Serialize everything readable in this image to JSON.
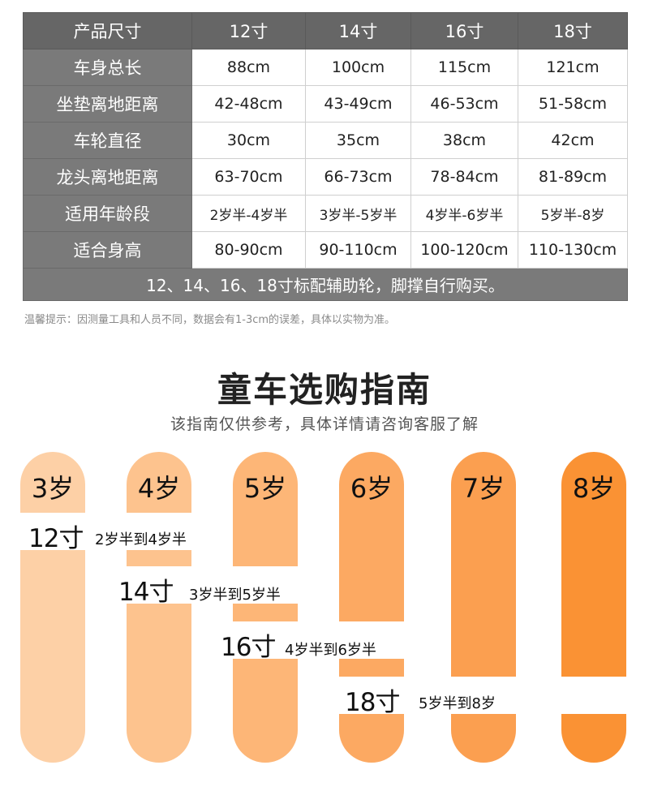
{
  "table": {
    "header": [
      "产品尺寸",
      "12寸",
      "14寸",
      "16寸",
      "18寸"
    ],
    "rows": [
      {
        "label": "车身总长",
        "values": [
          "88cm",
          "100cm",
          "115cm",
          "121cm"
        ]
      },
      {
        "label": "坐垫离地距离",
        "values": [
          "42-48cm",
          "43-49cm",
          "46-53cm",
          "51-58cm"
        ]
      },
      {
        "label": "车轮直径",
        "values": [
          "30cm",
          "35cm",
          "38cm",
          "42cm"
        ]
      },
      {
        "label": "龙头离地距离",
        "values": [
          "63-70cm",
          "66-73cm",
          "78-84cm",
          "81-89cm"
        ]
      },
      {
        "label": "适用年龄段",
        "values": [
          "2岁半-4岁半",
          "3岁半-5岁半",
          "4岁半-6岁半",
          "5岁半-8岁"
        ]
      },
      {
        "label": "适合身高",
        "values": [
          "80-90cm",
          "90-110cm",
          "100-120cm",
          "110-130cm"
        ]
      }
    ],
    "footer": "12、14、16、18寸标配辅助轮，脚撑自行购买。"
  },
  "tip": "温馨提示：因测量工具和人员不同，数据会有1-3cm的误差，具体以实物为准。",
  "guide": {
    "title": "童车选购指南",
    "subtitle": "该指南仅供参考，具体详情请咨询客服了解",
    "ages": [
      {
        "label": "3岁",
        "color": "#FDD0A6"
      },
      {
        "label": "4岁",
        "color": "#FDC38E"
      },
      {
        "label": "5岁",
        "color": "#FDB677"
      },
      {
        "label": "6岁",
        "color": "#FCA962"
      },
      {
        "label": "7岁",
        "color": "#FB9F50"
      },
      {
        "label": "8岁",
        "color": "#FA9234"
      }
    ],
    "sizes": [
      {
        "size": "12寸",
        "range": "2岁半到4岁半"
      },
      {
        "size": "14寸",
        "range": "3岁半到5岁半"
      },
      {
        "size": "16寸",
        "range": "4岁半到6岁半"
      },
      {
        "size": "18寸",
        "range": "5岁半到8岁"
      }
    ]
  }
}
